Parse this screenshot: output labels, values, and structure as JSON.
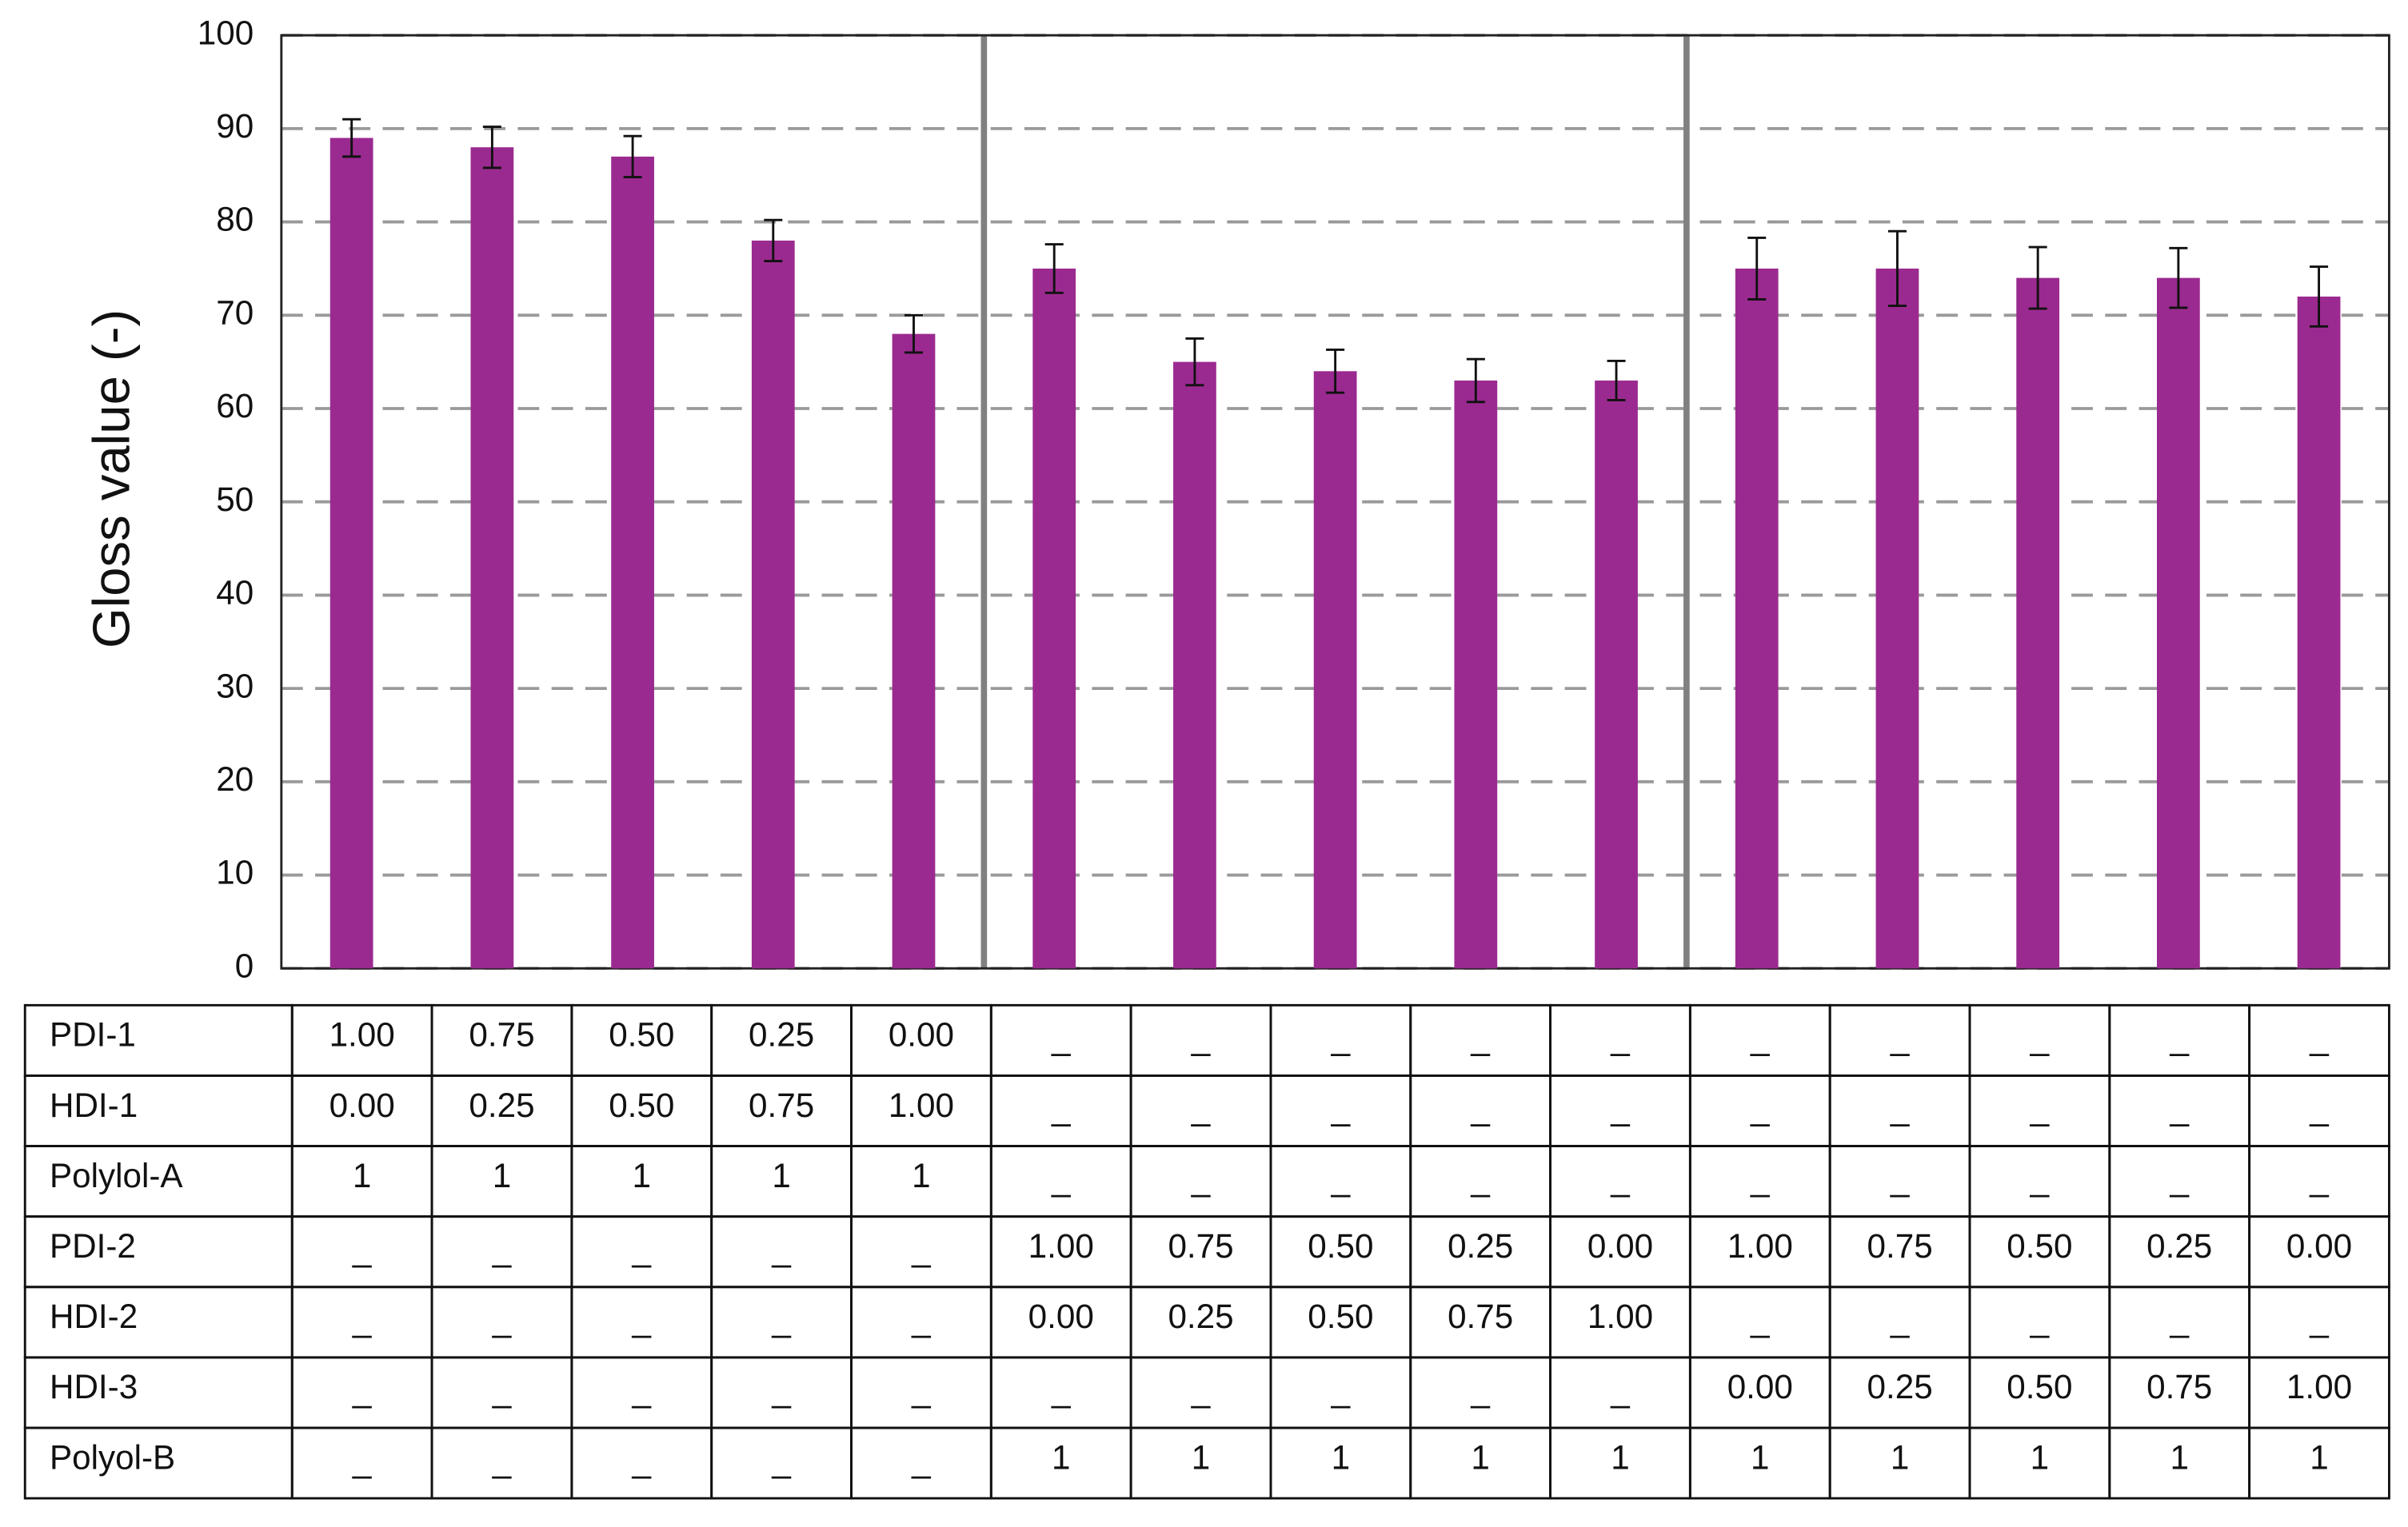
{
  "chart_data": {
    "type": "bar",
    "y_label": "Gloss value (-)",
    "values": [
      89,
      88,
      87,
      78,
      68,
      75,
      65,
      64,
      63,
      63,
      75,
      75,
      74,
      74,
      72
    ],
    "errors": [
      2,
      2.2,
      2.2,
      2.2,
      2,
      2.6,
      2.5,
      2.3,
      2.3,
      2.1,
      3.3,
      4,
      3.3,
      3.2,
      3.2
    ],
    "color": "#9b2a90",
    "ylim": [
      0,
      100
    ],
    "yticks": [
      0,
      10,
      20,
      30,
      40,
      50,
      60,
      70,
      80,
      90,
      100
    ],
    "grid": true,
    "table": {
      "rows": [
        [
          "PDI-1",
          "1.00",
          "0.75",
          "0.50",
          "0.25",
          "0.00",
          "_",
          "_",
          "_",
          "_",
          "_",
          "_",
          "_",
          "_",
          "_",
          "_"
        ],
        [
          "HDI-1",
          "0.00",
          "0.25",
          "0.50",
          "0.75",
          "1.00",
          "_",
          "_",
          "_",
          "_",
          "_",
          "_",
          "_",
          "_",
          "_",
          "_"
        ],
        [
          "Polylol-A",
          "1",
          "1",
          "1",
          "1",
          "1",
          "_",
          "_",
          "_",
          "_",
          "_",
          "_",
          "_",
          "_",
          "_",
          "_"
        ],
        [
          "PDI-2",
          "_",
          "_",
          "_",
          "_",
          "_",
          "1.00",
          "0.75",
          "0.50",
          "0.25",
          "0.00",
          "1.00",
          "0.75",
          "0.50",
          "0.25",
          "0.00"
        ],
        [
          "HDI-2",
          "_",
          "_",
          "_",
          "_",
          "_",
          "0.00",
          "0.25",
          "0.50",
          "0.75",
          "1.00",
          "_",
          "_",
          "_",
          "_",
          "_"
        ],
        [
          "HDI-3",
          "_",
          "_",
          "_",
          "_",
          "_",
          "_",
          "_",
          "_",
          "_",
          "_",
          "0.00",
          "0.25",
          "0.50",
          "0.75",
          "1.00"
        ],
        [
          "Polyol-B",
          "_",
          "_",
          "_",
          "_",
          "_",
          "1",
          "1",
          "1",
          "1",
          "1",
          "1",
          "1",
          "1",
          "1",
          "1"
        ]
      ]
    }
  }
}
